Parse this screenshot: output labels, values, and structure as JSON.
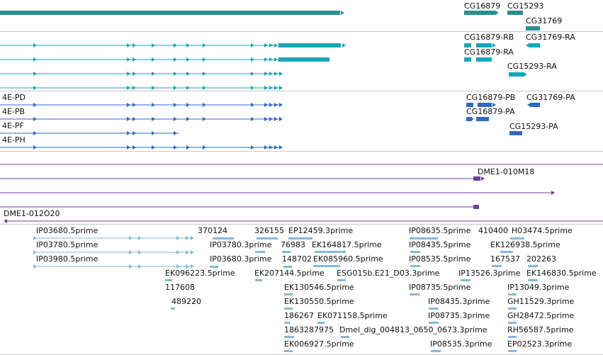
{
  "colors": {
    "gene": "#2a8f8f",
    "cdna_rb": "#18a6b8",
    "protein": "#2f6ac4",
    "clone": "#6a3fa0",
    "est": "#82b9db",
    "separator": "#c8c8c8"
  },
  "tracks": {
    "genes": {
      "labels": [
        "CG16879",
        "CG15293",
        "CG31769"
      ]
    },
    "transcripts": {
      "labels": [
        "CG16879-RB",
        "CG31769-RA",
        "CG16879-RA",
        "CG15293-RA"
      ]
    },
    "translations": {
      "left_labels": [
        "4E-PD",
        "4E-PB",
        "4E-PF",
        "4E-PH"
      ],
      "labels": [
        "CG16879-PB",
        "CG31769-PA",
        "CG16879-PA",
        "CG15293-PA"
      ]
    },
    "clones": {
      "labels": [
        "DME1-010M18",
        "DME1-012O20"
      ]
    },
    "ests": {
      "labels": [
        "IP03680.5prime",
        "370124",
        "326155",
        "EP12459.3prime",
        "IP08635.5prime",
        "410400",
        "H03474.5prime",
        "IP03780.5prime",
        "IP03780.3prime",
        "76983",
        "EK164817.5prime",
        "IP08435.5prime",
        "EK126938.5prime",
        "IP03980.5prime",
        "IP03680.3prime",
        "148702",
        "EK085960.5prime",
        "IP08535.5prime",
        "167537",
        "202263",
        "EK096223.5prime",
        "EK207144.5prime",
        "ESG015b.E21_D03.3prime",
        "IP13526.3prime",
        "EK146830.5prime",
        "117608",
        "EK130546.5prime",
        "IP08735.5prime",
        "IP13049.3prime",
        "489220",
        "EK130550.5prime",
        "IP08435.3prime",
        "GH11529.3prime",
        "186267",
        "EK071158.5prime",
        "IP08735.3prime",
        "GH28472.5prime",
        "1863287975",
        "Dmel_dig_004813_0650_0673.3prime",
        "RH56587.5prime",
        "EK006927.5prime",
        "IP08535.3prime",
        "EP02523.3prime"
      ]
    }
  }
}
